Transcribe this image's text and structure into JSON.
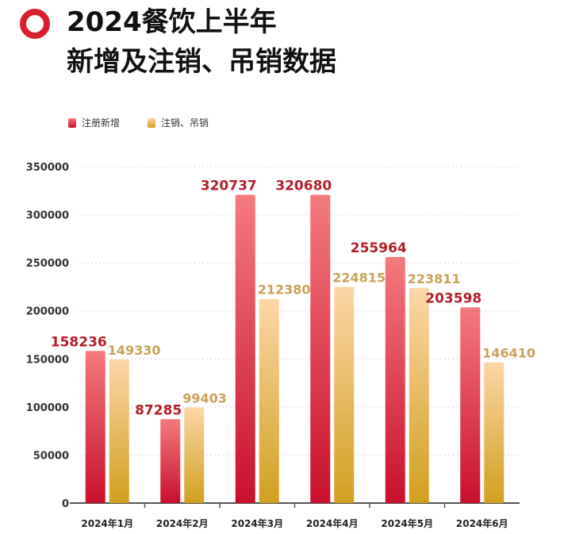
{
  "header": {
    "title_line1": "2024餐饮上半年",
    "title_line2": "新增及注销、吊销数据"
  },
  "colors": {
    "brand": "#d81f2e",
    "series_new_top": "#f47a7e",
    "series_new_bottom": "#c8102e",
    "series_cancel_top": "#fcd6a8",
    "series_cancel_bottom": "#d1a020",
    "label_new": "#b41e28",
    "label_cancel": "#c9a25a"
  },
  "chart_data": {
    "type": "bar",
    "title": "2024餐饮上半年 新增及注销、吊销数据",
    "xlabel": "",
    "ylabel": "",
    "ylim": [
      0,
      350000
    ],
    "yticks": [
      0,
      50000,
      100000,
      150000,
      200000,
      250000,
      300000,
      350000
    ],
    "grid": true,
    "legend_position": "top-left",
    "categories": [
      "2024年1月",
      "2024年2月",
      "2024年3月",
      "2024年4月",
      "2024年5月",
      "2024年6月"
    ],
    "series": [
      {
        "name": "注册新增",
        "values": [
          158236,
          87285,
          320737,
          320680,
          255964,
          203598
        ]
      },
      {
        "name": "注销、吊销",
        "values": [
          149330,
          99403,
          212380,
          224815,
          223811,
          146410
        ]
      }
    ]
  }
}
